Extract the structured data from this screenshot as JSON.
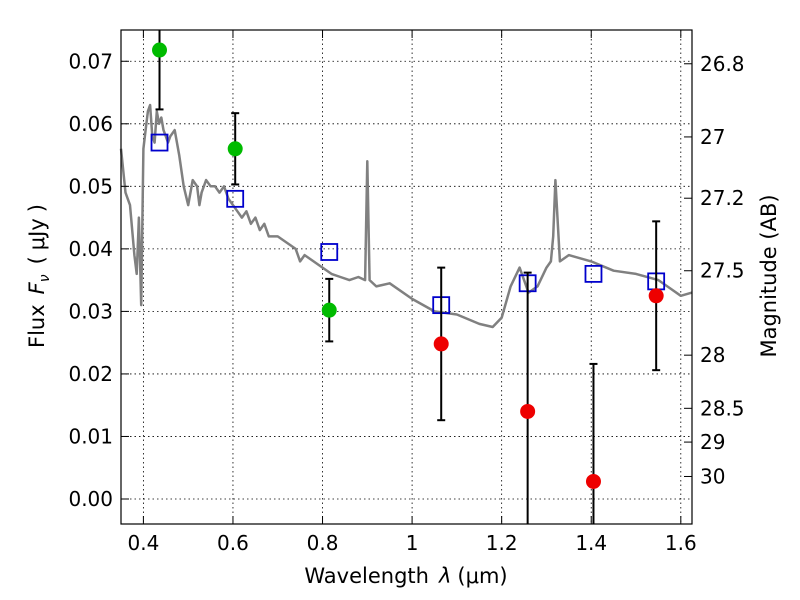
{
  "chart_data": {
    "type": "scatter",
    "xlabel_main": "Wavelength",
    "xlabel_symbol": "λ",
    "xlabel_unit": "(μm)",
    "ylabel_left_text": "Flux",
    "ylabel_left_symbol": "F",
    "ylabel_left_subscript": "ν",
    "ylabel_left_unit_open": "(",
    "ylabel_left_unit": "μJy",
    "ylabel_left_unit_close": ")",
    "ylabel_right": "Magnitude (AB)",
    "xlim": [
      0.35,
      1.625
    ],
    "ylim": [
      -0.004,
      0.075
    ],
    "x_ticks": [
      0.4,
      0.6,
      0.8,
      1.0,
      1.2,
      1.4,
      1.6
    ],
    "x_tick_labels": [
      "0.4",
      "0.6",
      "0.8",
      "1",
      "1.2",
      "1.4",
      "1.6"
    ],
    "y_ticks": [
      0.0,
      0.01,
      0.02,
      0.03,
      0.04,
      0.05,
      0.06,
      0.07
    ],
    "y_tick_labels": [
      "0.00",
      "0.01",
      "0.02",
      "0.03",
      "0.04",
      "0.05",
      "0.06",
      "0.07"
    ],
    "right_ticks": [
      {
        "label": "26.8",
        "flux": 0.0696
      },
      {
        "label": "27",
        "flux": 0.0579
      },
      {
        "label": "27.2",
        "flux": 0.0481
      },
      {
        "label": "27.5",
        "flux": 0.0365
      },
      {
        "label": "28",
        "flux": 0.023
      },
      {
        "label": "28.5",
        "flux": 0.0145
      },
      {
        "label": "29",
        "flux": 0.0091
      },
      {
        "label": "30",
        "flux": 0.0036
      }
    ],
    "grid": true,
    "colors": {
      "model": "#808080",
      "model_photometry": "#0000cc",
      "green": "#00bb00",
      "red": "#ee0000",
      "errorbar": "#000000"
    },
    "model_spectrum": {
      "x": [
        0.35,
        0.36,
        0.37,
        0.375,
        0.38,
        0.385,
        0.39,
        0.395,
        0.4,
        0.405,
        0.41,
        0.415,
        0.42,
        0.425,
        0.43,
        0.435,
        0.44,
        0.445,
        0.45,
        0.455,
        0.46,
        0.47,
        0.48,
        0.49,
        0.5,
        0.51,
        0.52,
        0.525,
        0.53,
        0.54,
        0.55,
        0.56,
        0.57,
        0.58,
        0.59,
        0.6,
        0.61,
        0.62,
        0.63,
        0.64,
        0.65,
        0.66,
        0.67,
        0.68,
        0.7,
        0.72,
        0.74,
        0.75,
        0.76,
        0.78,
        0.8,
        0.82,
        0.84,
        0.86,
        0.88,
        0.895,
        0.9,
        0.905,
        0.92,
        0.95,
        1.0,
        1.05,
        1.1,
        1.15,
        1.18,
        1.2,
        1.22,
        1.24,
        1.26,
        1.28,
        1.3,
        1.31,
        1.315,
        1.32,
        1.33,
        1.35,
        1.4,
        1.45,
        1.5,
        1.55,
        1.58,
        1.6,
        1.625
      ],
      "y": [
        0.056,
        0.049,
        0.047,
        0.043,
        0.039,
        0.036,
        0.045,
        0.031,
        0.056,
        0.059,
        0.062,
        0.063,
        0.058,
        0.057,
        0.062,
        0.06,
        0.061,
        0.059,
        0.058,
        0.057,
        0.058,
        0.059,
        0.055,
        0.05,
        0.047,
        0.051,
        0.05,
        0.047,
        0.049,
        0.051,
        0.05,
        0.05,
        0.049,
        0.05,
        0.048,
        0.047,
        0.046,
        0.045,
        0.046,
        0.044,
        0.045,
        0.043,
        0.044,
        0.042,
        0.042,
        0.041,
        0.04,
        0.038,
        0.039,
        0.038,
        0.037,
        0.036,
        0.0355,
        0.035,
        0.0355,
        0.035,
        0.054,
        0.035,
        0.034,
        0.0345,
        0.032,
        0.03,
        0.0295,
        0.028,
        0.0275,
        0.029,
        0.034,
        0.037,
        0.033,
        0.034,
        0.037,
        0.038,
        0.042,
        0.051,
        0.038,
        0.039,
        0.038,
        0.0365,
        0.036,
        0.035,
        0.0335,
        0.0325,
        0.033
      ]
    },
    "series": [
      {
        "marker": "open-square",
        "color": "#0000cc",
        "x": [
          0.436,
          0.605,
          0.815,
          1.065,
          1.258,
          1.405,
          1.545
        ],
        "y": [
          0.057,
          0.048,
          0.0395,
          0.031,
          0.0345,
          0.036,
          0.0348
        ]
      },
      {
        "marker": "circle",
        "color": "#00bb00",
        "x": [
          0.436,
          0.605,
          0.815
        ],
        "y": [
          0.0718,
          0.056,
          0.0302
        ],
        "err": [
          0.0095,
          0.0057,
          0.005
        ]
      },
      {
        "marker": "circle",
        "color": "#ee0000",
        "x": [
          1.065,
          1.258,
          1.405,
          1.545
        ],
        "y": [
          0.0248,
          0.014,
          0.0028,
          0.0325
        ],
        "err": [
          0.0122,
          0.0222,
          0.0188,
          0.0119
        ]
      }
    ]
  }
}
